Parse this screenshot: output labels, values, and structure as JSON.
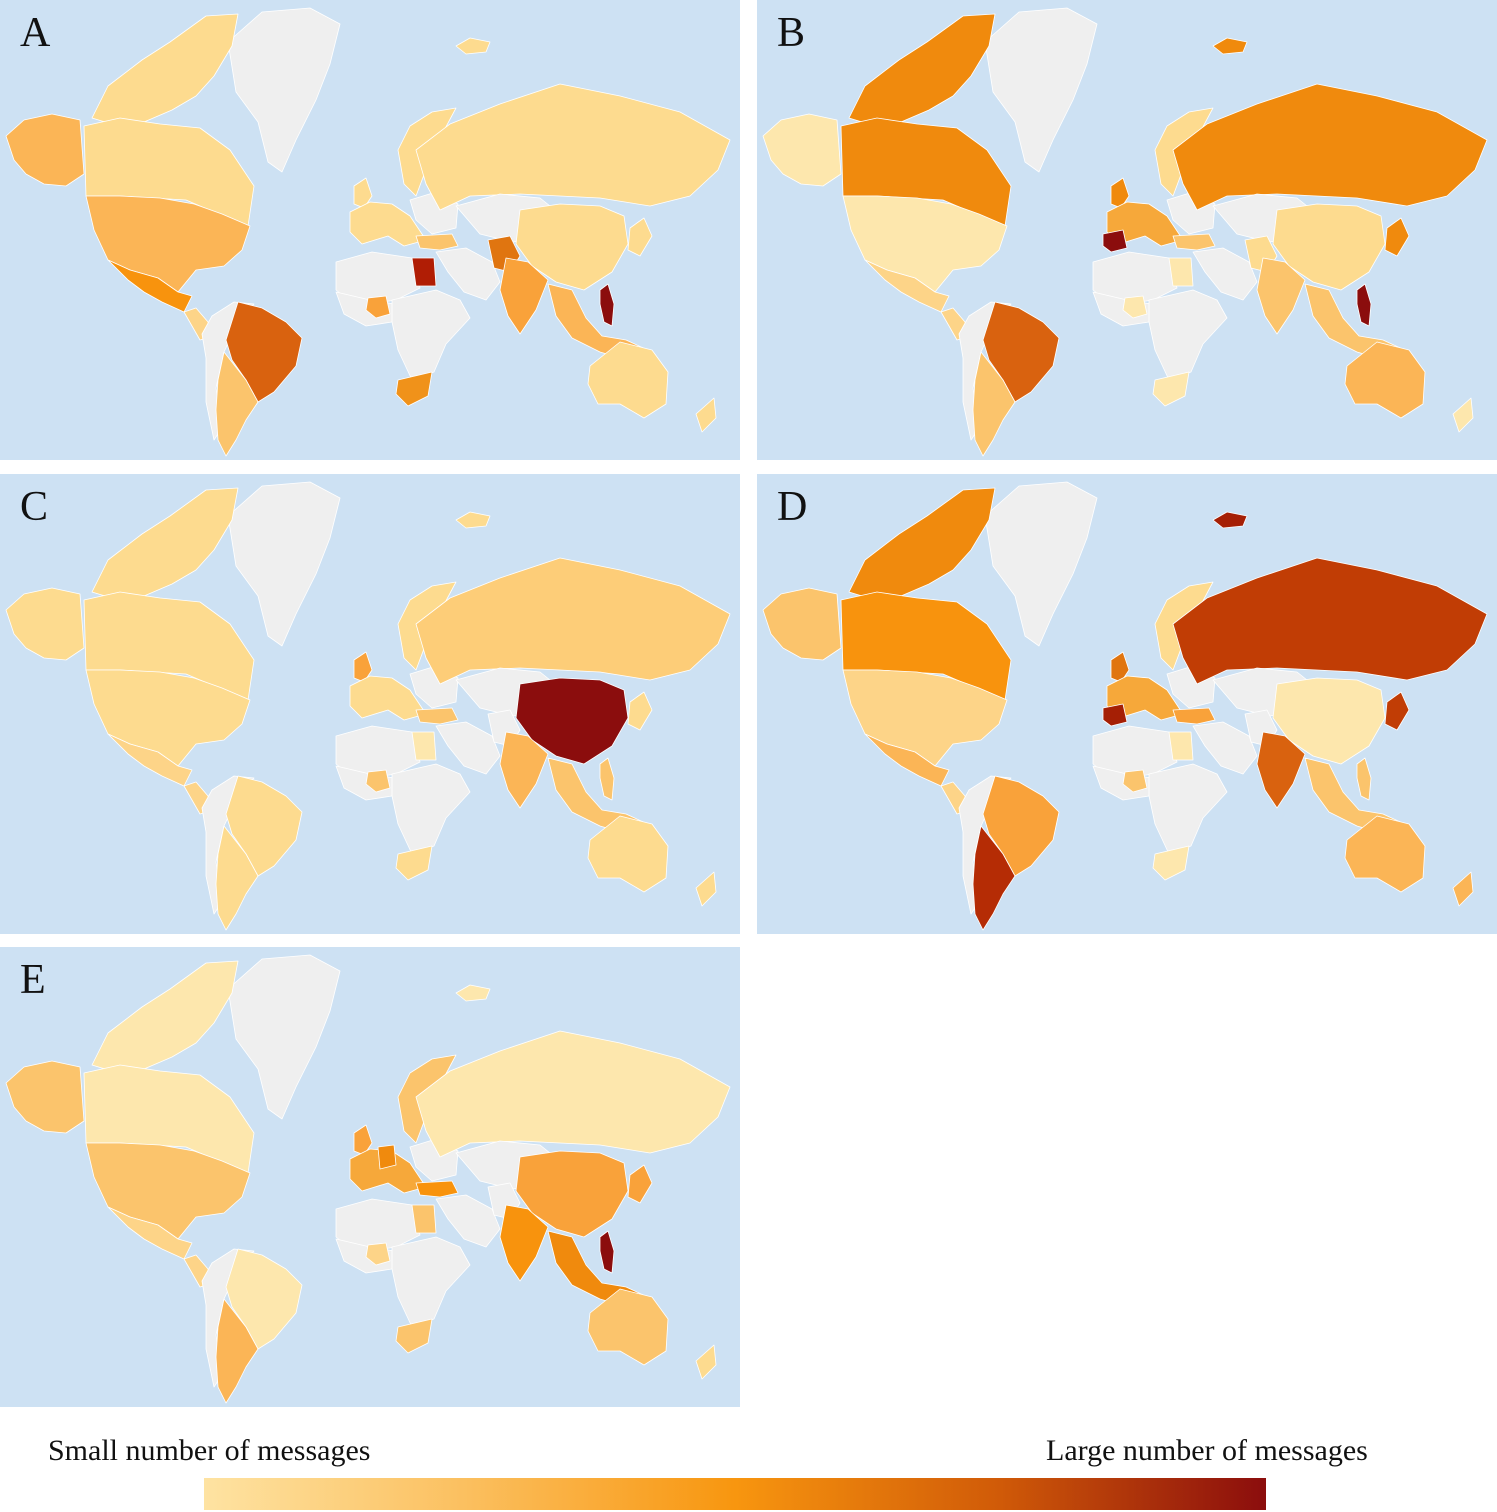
{
  "panels": [
    {
      "letter": "A",
      "fills": {
        "alaska": "#fbb556",
        "canada": "#fddb8f",
        "arctic": "#fddb8f",
        "greenland": "#efefef",
        "usa": "#fbb556",
        "mexico": "#f8930d",
        "central_america": "#fdd488",
        "south_america_west": "#efefef",
        "brazil": "#d9620f",
        "argentina": "#fbc46c",
        "scandinavia": "#fddb8f",
        "uk": "#fddb8f",
        "western_europe": "#fddb8f",
        "eastern_europe": "#efefef",
        "russia": "#fddb8f",
        "central_asia": "#efefef",
        "middle_east": "#efefef",
        "turkey": "#fbc46c",
        "china": "#fddb8f",
        "india": "#f9a23a",
        "pakistan": "#e07510",
        "se_asia": "#fbb556",
        "philippines": "#8b0d0d",
        "japan": "#fddb8f",
        "north_africa": "#efefef",
        "egypt": "#b01d05",
        "west_africa": "#efefef",
        "nigeria": "#f9a23a",
        "central_africa": "#efefef",
        "south_africa": "#f0921a",
        "australia": "#fddb8f",
        "new_zealand": "#fddb8f",
        "svalbard": "#fddb8f"
      }
    },
    {
      "letter": "B",
      "fills": {
        "alaska": "#fde7ad",
        "canada": "#f08a0d",
        "arctic": "#f08a0d",
        "greenland": "#efefef",
        "usa": "#fde7ad",
        "mexico": "#fdd488",
        "central_america": "#fdd488",
        "south_america_west": "#efefef",
        "brazil": "#d9620f",
        "argentina": "#fbc46c",
        "scandinavia": "#fddb8f",
        "uk": "#f08a0d",
        "western_europe": "#f6a83a",
        "eastern_europe": "#efefef",
        "russia": "#f08a0d",
        "central_asia": "#efefef",
        "middle_east": "#efefef",
        "turkey": "#fbc46c",
        "china": "#fddb8f",
        "india": "#fbc46c",
        "pakistan": "#fddb8f",
        "se_asia": "#fbc46c",
        "philippines": "#8b0d0d",
        "japan": "#f08a0d",
        "north_africa": "#efefef",
        "egypt": "#fde7ad",
        "west_africa": "#efefef",
        "nigeria": "#fde7ad",
        "central_africa": "#efefef",
        "south_africa": "#fde7ad",
        "australia": "#fbb556",
        "new_zealand": "#fde7ad",
        "svalbard": "#f08a0d",
        "spain": "#8b0d0d"
      }
    },
    {
      "letter": "C",
      "fills": {
        "alaska": "#fddb8f",
        "canada": "#fddb8f",
        "arctic": "#fddb8f",
        "greenland": "#efefef",
        "usa": "#fddb8f",
        "mexico": "#fdd488",
        "central_america": "#fdd488",
        "south_america_west": "#efefef",
        "brazil": "#fddb8f",
        "argentina": "#fddb8f",
        "scandinavia": "#fddb8f",
        "uk": "#f9a23a",
        "western_europe": "#fddb8f",
        "eastern_europe": "#efefef",
        "russia": "#fdcd78",
        "central_asia": "#efefef",
        "middle_east": "#efefef",
        "turkey": "#fbc46c",
        "china": "#8b0d0d",
        "india": "#fbb556",
        "pakistan": "#efefef",
        "se_asia": "#fbc46c",
        "philippines": "#fbc46c",
        "japan": "#fddb8f",
        "north_africa": "#efefef",
        "egypt": "#fde7ad",
        "west_africa": "#efefef",
        "nigeria": "#fbc46c",
        "central_africa": "#efefef",
        "south_africa": "#fddb8f",
        "australia": "#fddb8f",
        "new_zealand": "#fddb8f",
        "svalbard": "#fddb8f"
      }
    },
    {
      "letter": "D",
      "fills": {
        "alaska": "#fbc46c",
        "canada": "#f8930d",
        "arctic": "#f08a0d",
        "greenland": "#efefef",
        "usa": "#fdd488",
        "mexico": "#fbb556",
        "central_america": "#fdd488",
        "south_america_west": "#efefef",
        "brazil": "#f9a23a",
        "argentina": "#b52c05",
        "scandinavia": "#fddb8f",
        "uk": "#e07510",
        "western_europe": "#f6a83a",
        "eastern_europe": "#efefef",
        "russia": "#c13d05",
        "central_asia": "#efefef",
        "middle_east": "#efefef",
        "turkey": "#f9a23a",
        "china": "#fde7ad",
        "india": "#d9620f",
        "pakistan": "#efefef",
        "se_asia": "#fbc46c",
        "philippines": "#fbc46c",
        "japan": "#c13d05",
        "north_africa": "#efefef",
        "egypt": "#fde7ad",
        "west_africa": "#efefef",
        "nigeria": "#fbc46c",
        "central_africa": "#efefef",
        "south_africa": "#fde7ad",
        "australia": "#fbb556",
        "new_zealand": "#fbb556",
        "svalbard": "#a51f05",
        "spain": "#a51f05"
      }
    },
    {
      "letter": "E",
      "fills": {
        "alaska": "#fbc46c",
        "canada": "#fde7ad",
        "arctic": "#fde7ad",
        "greenland": "#efefef",
        "usa": "#fbc46c",
        "mexico": "#fdd488",
        "central_america": "#fdd488",
        "south_america_west": "#efefef",
        "brazil": "#fde7ad",
        "argentina": "#fbb556",
        "scandinavia": "#fbc46c",
        "uk": "#f9a23a",
        "western_europe": "#f6a83a",
        "eastern_europe": "#efefef",
        "russia": "#fde7ad",
        "central_asia": "#efefef",
        "middle_east": "#efefef",
        "turkey": "#f8930d",
        "china": "#f9a23a",
        "india": "#f8930d",
        "pakistan": "#efefef",
        "se_asia": "#f08a0d",
        "philippines": "#8b0d0d",
        "japan": "#f9a23a",
        "north_africa": "#efefef",
        "egypt": "#fbc46c",
        "west_africa": "#efefef",
        "nigeria": "#fdd488",
        "central_africa": "#efefef",
        "south_africa": "#fbc46c",
        "australia": "#fbc46c",
        "new_zealand": "#fddb8f",
        "svalbard": "#fde7ad",
        "germany": "#f08a0d"
      }
    }
  ],
  "legend": {
    "min_label": "Small number of messages",
    "max_label": "Large number of messages",
    "colors": [
      "#fee3a2",
      "#fbbf5e",
      "#f8960f",
      "#d05a08",
      "#8b0d0d"
    ]
  }
}
